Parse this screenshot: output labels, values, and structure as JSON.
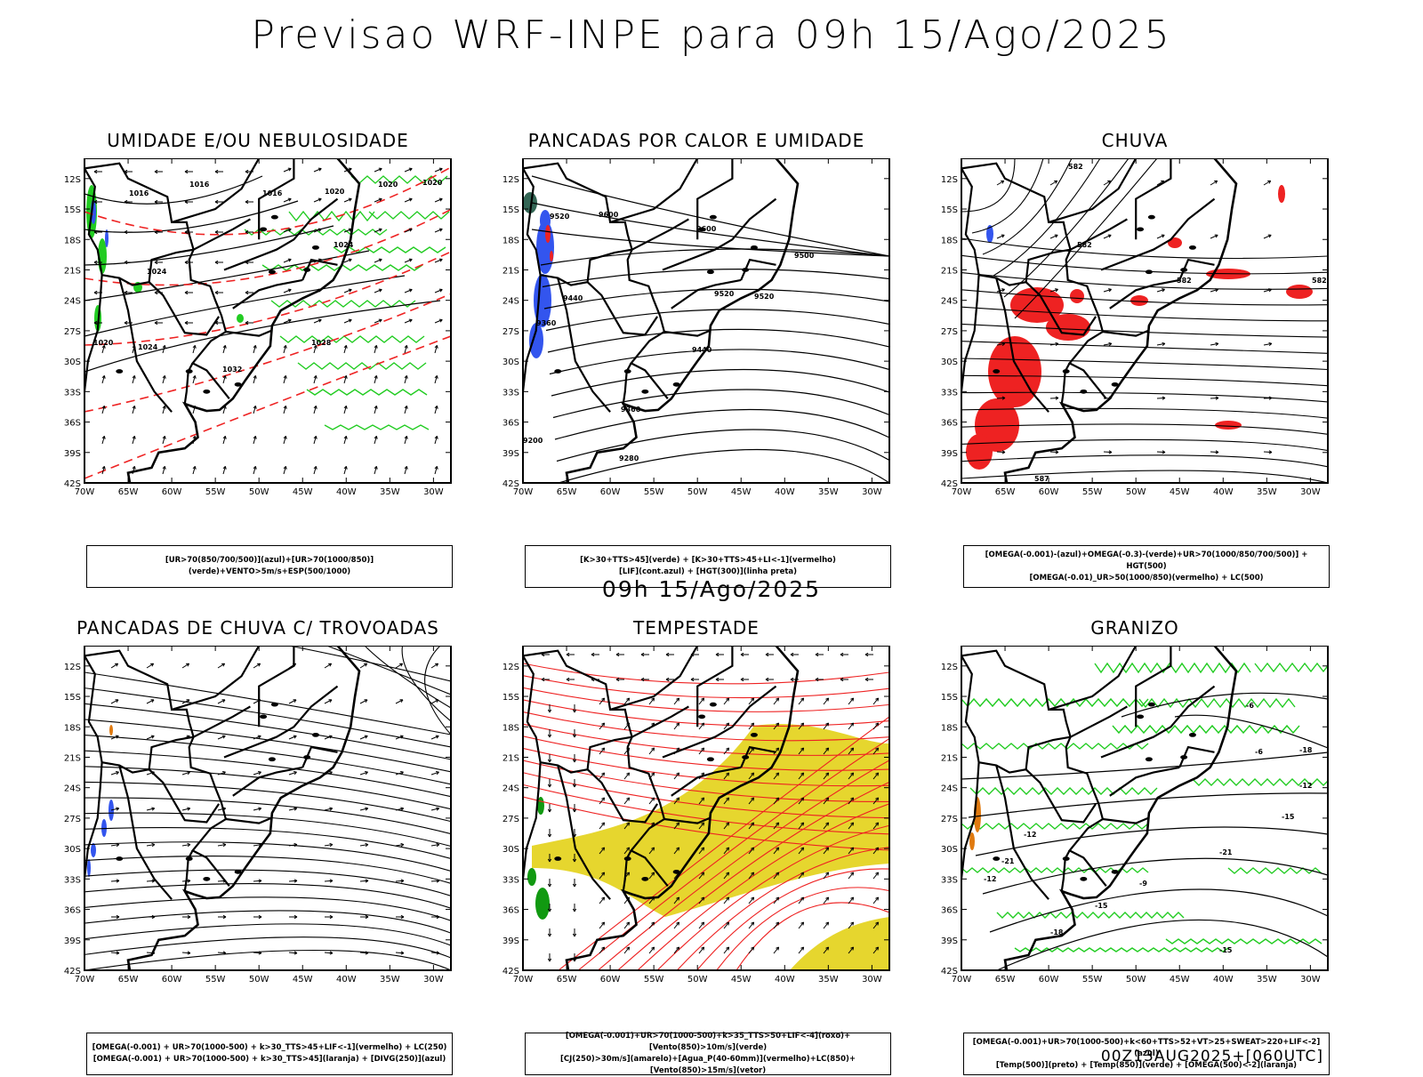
{
  "title": "Previsao WRF-INPE  para 09h 15/Ago/2025",
  "subtitle": "09h 15/Ago/2025",
  "footer": "00Z13AUG2025+[060UTC]",
  "lat_labels": [
    "12S",
    "15S",
    "18S",
    "21S",
    "24S",
    "27S",
    "30S",
    "33S",
    "36S",
    "39S",
    "42S"
  ],
  "lon_labels": [
    "70W",
    "65W",
    "60W",
    "55W",
    "50W",
    "45W",
    "40W",
    "35W",
    "30W"
  ],
  "colors": {
    "blue": "#3355ee",
    "green": "#22cc22",
    "red": "#ee2222",
    "yellow": "#e6d62e",
    "darkgreen": "#119911",
    "orange": "#e07a10"
  },
  "panels": [
    {
      "id": "umidade",
      "title": "UMIDADE E/OU NEBULOSIDADE",
      "legend": [
        "[UR>70(850/700/500)](azul)+[UR>70(1000/850)](verde)+VENTO>5m/s+ESP(500/1000)"
      ],
      "contour_labels": [
        "1016",
        "1016",
        "1016",
        "1020",
        "1020",
        "1020",
        "1024",
        "1024",
        "1024",
        "1028",
        "1032",
        "1020"
      ]
    },
    {
      "id": "pancadas-calor",
      "title": "PANCADAS POR CALOR E UMIDADE",
      "legend": [
        "[K>30+TTS>45](verde) + [K>30+TTS>45+LI<-1](vermelho)",
        "[LIF](cont.azul) + [HGT(300)](linha preta)"
      ],
      "contour_labels": [
        "9520",
        "9600",
        "9600",
        "9500",
        "9520",
        "9520",
        "9440",
        "9440",
        "9360",
        "9280",
        "9200",
        "9360"
      ]
    },
    {
      "id": "chuva",
      "title": "CHUVA",
      "legend": [
        "[OMEGA(-0.001)-(azul)+OMEGA(-0.3)-(verde)+UR>70(1000/850/700/500)] + HGT(500)",
        "[OMEGA(-0.01)_UR>50(1000/850)(vermelho) + LC(500)"
      ],
      "contour_labels": [
        "582",
        "582",
        "582",
        "582",
        "587"
      ]
    },
    {
      "id": "pancadas-trovoadas",
      "title": "PANCADAS DE CHUVA C/ TROVOADAS",
      "legend": [
        "[OMEGA(-0.001) + UR>70(1000-500) + k>30_TTS>45+LIF<-1](vermelho) + LC(250)",
        "[OMEGA(-0.001) + UR>70(1000-500) + k>30_TTS>45](laranja) + [DIVG(250)](azul)"
      ],
      "contour_labels": []
    },
    {
      "id": "tempestade",
      "title": "TEMPESTADE",
      "legend": [
        "[OMEGA(-0.001)+UR>70(1000-500)+k>35_TTS>50+LIF<-4](roxo)+[Vento(850)>10m/s](verde)",
        "[CJ(250)>30m/s](amarelo)+[Agua_P(40-60mm)](vermelho)+LC(850)+[Vento(850)>15m/s](vetor)"
      ],
      "contour_labels": []
    },
    {
      "id": "granizo",
      "title": "GRANIZO",
      "legend": [
        "[OMEGA(-0.001)+UR>70(1000-500)+k<60+TTS>52+VT>25+SWEAT>220+LIF<-2](azul)",
        "[Temp(500)](preto) + [Temp(850)](verde) + [OMEGA(500)<-2](laranja)"
      ],
      "contour_labels": [
        "-6",
        "-6",
        "-12",
        "-12",
        "-15",
        "-21",
        "-18",
        "-21",
        "-15",
        "-18",
        "-12",
        "-15",
        "-9"
      ]
    }
  ]
}
